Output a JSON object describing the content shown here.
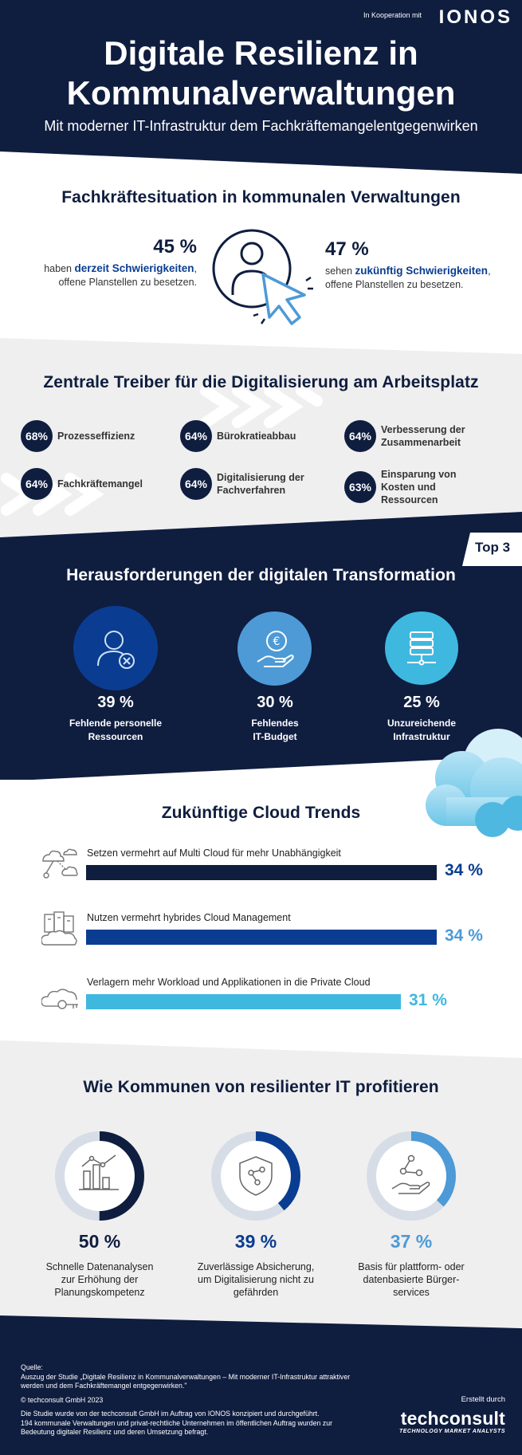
{
  "header": {
    "coop": "In Kooperation mit",
    "brand": "IONOS",
    "title_line1": "Digitale Resilienz in",
    "title_line2": "Kommunalverwaltungen",
    "subtitle": "Mit moderner IT-Infrastruktur dem Fachkräftemangelentgegenwirken"
  },
  "staff": {
    "heading": "Fachkräftesituation in kommunalen Verwaltungen",
    "left": {
      "pct": "45 %",
      "pre": "haben ",
      "bold": "derzeit Schwierigkeiten",
      "post": ",",
      "line2": "offene Planstellen zu besetzen."
    },
    "right": {
      "pct": "47 %",
      "pre": "sehen ",
      "bold": "zukünftig Schwierigkeiten",
      "post": ",",
      "line2": "offene Planstellen zu besetzen."
    }
  },
  "drivers": {
    "heading": "Zentrale Treiber für die Digitalisierung am Arbeitsplatz",
    "items": [
      {
        "pct": "68%",
        "label": "Prozesseffizienz"
      },
      {
        "pct": "64%",
        "label": "Bürokratieabbau"
      },
      {
        "pct": "64%",
        "label": "Verbesserung der Zusammenarbeit"
      },
      {
        "pct": "64%",
        "label": "Fachkräftemangel"
      },
      {
        "pct": "64%",
        "label": "Digitalisierung der Fachverfahren"
      },
      {
        "pct": "63%",
        "label": "Einsparung von Kosten und Ressourcen"
      }
    ]
  },
  "challenges": {
    "badge": "Top 3",
    "heading": "Herausforderungen der digitalen Transformation",
    "items": [
      {
        "pct": "39 %",
        "line1": "Fehlende personelle",
        "line2": "Ressourcen",
        "color": "#0a3d91"
      },
      {
        "pct": "30 %",
        "line1": "Fehlendes",
        "line2": "IT-Budget",
        "color": "#4d9ad6"
      },
      {
        "pct": "25 %",
        "line1": "Unzureichende",
        "line2": "Infrastruktur",
        "color": "#3fb8e0"
      }
    ]
  },
  "cloud": {
    "heading": "Zukünftige Cloud Trends",
    "items": [
      {
        "label": "Setzen vermehrt auf Multi Cloud für mehr Unabhängigkeit",
        "pct": "34 %",
        "value": 34,
        "color": "#0f1d3f",
        "pct_color": "#0a3d91"
      },
      {
        "label": "Nutzen vermehrt hybrides Cloud Management",
        "pct": "34 %",
        "value": 34,
        "color": "#0a3d91",
        "pct_color": "#4d9ad6"
      },
      {
        "label": "Verlagern mehr Workload und Applikationen in die Private Cloud",
        "pct": "31 %",
        "value": 31,
        "color": "#3fb8e0",
        "pct_color": "#3fb8e0"
      }
    ]
  },
  "benefits": {
    "heading": "Wie Kommunen von resilienter IT profitieren",
    "items": [
      {
        "pct": "50 %",
        "value": 50,
        "line1": "Schnelle Datenanalysen",
        "line2": "zur Erhöhung der",
        "line3": "Planungskompetenz",
        "color": "#0f1d3f"
      },
      {
        "pct": "39 %",
        "value": 39,
        "line1": "Zuverlässige Absicherung,",
        "line2": "um Digitalisierung nicht zu",
        "line3": "gefährden",
        "color": "#0a3d91"
      },
      {
        "pct": "37 %",
        "value": 37,
        "line1": "Basis für plattform- oder",
        "line2": "datenbasierte Bürger-",
        "line3": "services",
        "color": "#4d9ad6"
      }
    ]
  },
  "footer": {
    "source_label": "Quelle:",
    "source1": "Auszug der Studie „Digitale Resilienz in Kommunalverwaltungen – Mit moderner IT-Infrastruktur attraktiver",
    "source2": "werden und dem Fachkräftemangel entgegenwirken.\"",
    "copyright": "© techconsult GmbH 2023",
    "note1": "Die Studie wurde von der techconsult GmbH im Auftrag von IONOS konzipiert und durchgeführt.",
    "note2": "194 kommunale Verwaltungen und privat-rechtliche Unternehmen im öffentlichen Auftrag wurden zur",
    "note3": "Bedeutung digitaler Resilienz und deren Umsetzung befragt.",
    "created_by": "Erstellt durch",
    "brand": "techconsult",
    "tagline": "TECHNOLOGY MARKET ANALYSTS"
  }
}
